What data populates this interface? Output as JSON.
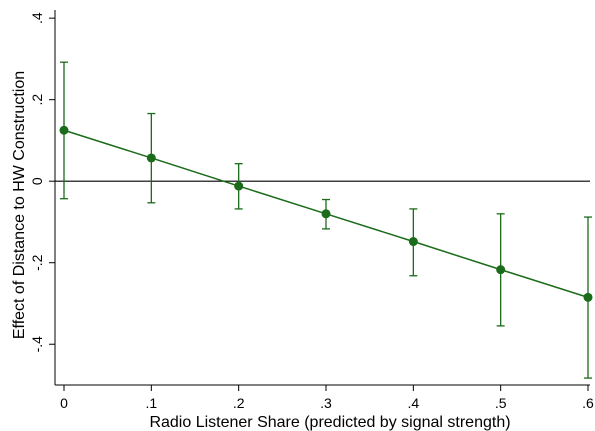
{
  "chart_data": {
    "type": "line",
    "title": "",
    "xlabel": "Radio Listener Share (predicted by signal strength)",
    "ylabel": "Effect of Distance to HW Construction",
    "xlim": [
      0,
      0.6
    ],
    "ylim": [
      -0.5,
      0.42
    ],
    "x_ticks": [
      0,
      0.1,
      0.2,
      0.3,
      0.4,
      0.5,
      0.6
    ],
    "x_tick_labels": [
      "0",
      ".1",
      ".2",
      ".3",
      ".4",
      ".5",
      ".6"
    ],
    "y_ticks": [
      0.4,
      0.2,
      0,
      -0.2,
      -0.4
    ],
    "y_tick_labels": [
      ".4",
      ".2",
      "0",
      "-.2",
      "-.4"
    ],
    "reference_line_y": 0,
    "grid": false,
    "legend": "none",
    "color": "#1a6b1a",
    "series": [
      {
        "x": [
          0,
          0.1,
          0.2,
          0.3,
          0.4,
          0.5,
          0.6
        ],
        "y": [
          0.125,
          0.057,
          -0.012,
          -0.08,
          -0.148,
          -0.217,
          -0.285
        ],
        "ci_low": [
          -0.043,
          -0.053,
          -0.068,
          -0.117,
          -0.232,
          -0.355,
          -0.483
        ],
        "ci_high": [
          0.292,
          0.166,
          0.043,
          -0.045,
          -0.068,
          -0.08,
          -0.088
        ]
      }
    ]
  }
}
